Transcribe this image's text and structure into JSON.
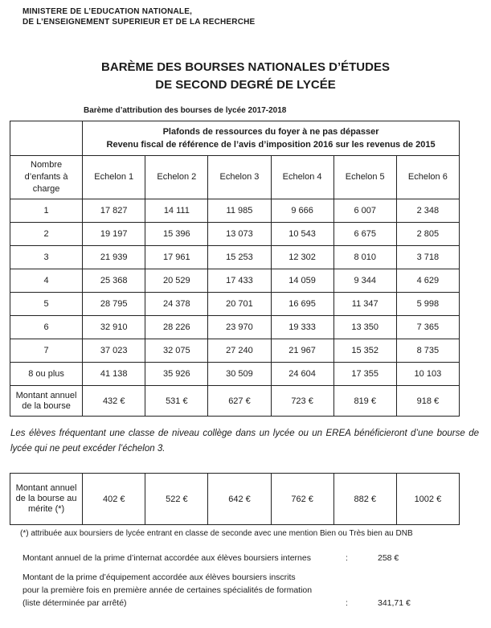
{
  "ministry": {
    "line1": "MINISTERE DE L’EDUCATION NATIONALE,",
    "line2": "DE L’ENSEIGNEMENT SUPERIEUR ET DE LA RECHERCHE"
  },
  "title": {
    "line1": "BARÈME DES BOURSES NATIONALES D’ÉTUDES",
    "line2": "DE SECOND DEGRÉ DE LYCÉE"
  },
  "caption": "Barème d’attribution des bourses de lycée 2017-2018",
  "main_table": {
    "header": {
      "line1": "Plafonds de ressources du foyer à ne pas dépasser",
      "line2": "Revenu fiscal de référence de l’avis d’imposition 2016 sur les revenus de 2015"
    },
    "row_header_lines": [
      "Nombre",
      "d’enfants à",
      "charge"
    ],
    "columns": [
      "Echelon 1",
      "Echelon 2",
      "Echelon 3",
      "Echelon 4",
      "Echelon 5",
      "Echelon 6"
    ],
    "rows": [
      {
        "label": "1",
        "values": [
          "17 827",
          "14 111",
          "11 985",
          "9 666",
          "6 007",
          "2 348"
        ]
      },
      {
        "label": "2",
        "values": [
          "19 197",
          "15 396",
          "13 073",
          "10 543",
          "6 675",
          "2 805"
        ]
      },
      {
        "label": "3",
        "values": [
          "21 939",
          "17 961",
          "15 253",
          "12 302",
          "8 010",
          "3 718"
        ]
      },
      {
        "label": "4",
        "values": [
          "25 368",
          "20 529",
          "17 433",
          "14 059",
          "9 344",
          "4 629"
        ]
      },
      {
        "label": "5",
        "values": [
          "28 795",
          "24 378",
          "20 701",
          "16 695",
          "11 347",
          "5 998"
        ]
      },
      {
        "label": "6",
        "values": [
          "32 910",
          "28 226",
          "23 970",
          "19 333",
          "13 350",
          "7 365"
        ]
      },
      {
        "label": "7",
        "values": [
          "37 023",
          "32 075",
          "27 240",
          "21 967",
          "15 352",
          "8 735"
        ]
      },
      {
        "label": "8 ou plus",
        "values": [
          "41 138",
          "35 926",
          "30 509",
          "24 604",
          "17 355",
          "10 103"
        ]
      }
    ],
    "amount_row": {
      "label_lines": [
        "Montant annuel",
        "de la bourse"
      ],
      "values": [
        "432 €",
        "531 €",
        "627 €",
        "723 €",
        "819 €",
        "918 €"
      ]
    }
  },
  "note": {
    "line1": "Les élèves fréquentant une classe de niveau collège dans un lycée ou un EREA bénéficieront d’une bourse de",
    "line2": "lycée qui ne peut excéder l’échelon 3."
  },
  "merit_table": {
    "label_lines": [
      "Montant annuel",
      "de la bourse au",
      "mérite (*)"
    ],
    "values": [
      "402 €",
      "522 €",
      "642 €",
      "762 €",
      "882 €",
      "1002 €"
    ]
  },
  "footnote": "(*) attribuée aux boursiers de lycée entrant en classe de seconde avec une mention Bien ou Très bien au DNB",
  "internat": {
    "label": "Montant annuel de la prime d’internat accordée aux élèves boursiers internes",
    "colon": ":",
    "value": "258 €"
  },
  "equipement": {
    "line1": "Montant de la prime d’équipement accordée aux élèves boursiers inscrits",
    "line2": "pour la première fois en première année de certaines spécialités de formation",
    "line3": "(liste déterminée par arrêté)",
    "colon": ":",
    "value": "341,71 €"
  }
}
